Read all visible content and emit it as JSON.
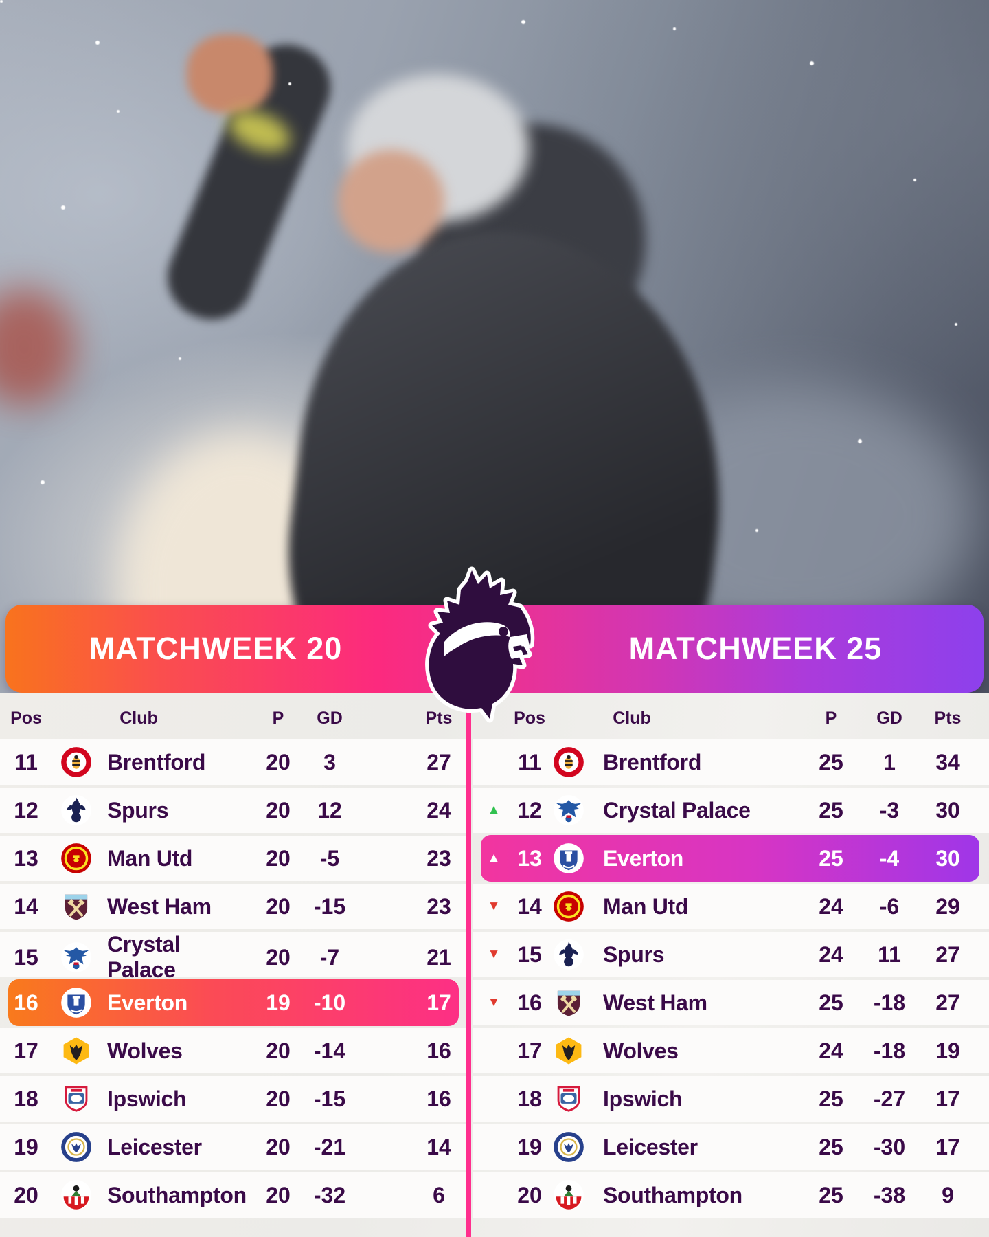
{
  "banner": {
    "left_title": "MATCHWEEK 20",
    "right_title": "MATCHWEEK 25"
  },
  "columns": {
    "pos": "Pos",
    "club": "Club",
    "p": "P",
    "gd": "GD",
    "pts": "Pts"
  },
  "icons": {
    "up": "▲",
    "down": "▼",
    "lion": "premier-league-lion-logo"
  },
  "colors": {
    "text_purple": "#3a0a48",
    "divider_pink": "#ff2f8e",
    "mw20_gradient": [
      "#f9731d",
      "#fd2f85"
    ],
    "mw25_gradient": [
      "#f2359f",
      "#9f36e8"
    ],
    "banner_gradient": [
      "#f9731d",
      "#fc2a7e",
      "#8d40ec"
    ],
    "up_green": "#31c14f",
    "down_red": "#e03a2e"
  },
  "tables": {
    "left": {
      "title": "MATCHWEEK 20",
      "rows": [
        {
          "pos": "11",
          "club": "Brentford",
          "crest": "brentford",
          "p": "20",
          "gd": "3",
          "pts": "27",
          "movement": "none",
          "highlight": false
        },
        {
          "pos": "12",
          "club": "Spurs",
          "crest": "spurs",
          "p": "20",
          "gd": "12",
          "pts": "24",
          "movement": "none",
          "highlight": false
        },
        {
          "pos": "13",
          "club": "Man Utd",
          "crest": "man-utd",
          "p": "20",
          "gd": "-5",
          "pts": "23",
          "movement": "none",
          "highlight": false
        },
        {
          "pos": "14",
          "club": "West Ham",
          "crest": "west-ham",
          "p": "20",
          "gd": "-15",
          "pts": "23",
          "movement": "none",
          "highlight": false
        },
        {
          "pos": "15",
          "club": "Crystal Palace",
          "crest": "crystal-palace",
          "p": "20",
          "gd": "-7",
          "pts": "21",
          "movement": "none",
          "highlight": false
        },
        {
          "pos": "16",
          "club": "Everton",
          "crest": "everton",
          "p": "19",
          "gd": "-10",
          "pts": "17",
          "movement": "none",
          "highlight": true
        },
        {
          "pos": "17",
          "club": "Wolves",
          "crest": "wolves",
          "p": "20",
          "gd": "-14",
          "pts": "16",
          "movement": "none",
          "highlight": false
        },
        {
          "pos": "18",
          "club": "Ipswich",
          "crest": "ipswich",
          "p": "20",
          "gd": "-15",
          "pts": "16",
          "movement": "none",
          "highlight": false
        },
        {
          "pos": "19",
          "club": "Leicester",
          "crest": "leicester",
          "p": "20",
          "gd": "-21",
          "pts": "14",
          "movement": "none",
          "highlight": false
        },
        {
          "pos": "20",
          "club": "Southampton",
          "crest": "southampton",
          "p": "20",
          "gd": "-32",
          "pts": "6",
          "movement": "none",
          "highlight": false
        }
      ]
    },
    "right": {
      "title": "MATCHWEEK 25",
      "rows": [
        {
          "pos": "11",
          "club": "Brentford",
          "crest": "brentford",
          "p": "25",
          "gd": "1",
          "pts": "34",
          "movement": "none",
          "highlight": false
        },
        {
          "pos": "12",
          "club": "Crystal Palace",
          "crest": "crystal-palace",
          "p": "25",
          "gd": "-3",
          "pts": "30",
          "movement": "up",
          "highlight": false
        },
        {
          "pos": "13",
          "club": "Everton",
          "crest": "everton",
          "p": "25",
          "gd": "-4",
          "pts": "30",
          "movement": "up",
          "highlight": true
        },
        {
          "pos": "14",
          "club": "Man Utd",
          "crest": "man-utd",
          "p": "24",
          "gd": "-6",
          "pts": "29",
          "movement": "down",
          "highlight": false
        },
        {
          "pos": "15",
          "club": "Spurs",
          "crest": "spurs",
          "p": "24",
          "gd": "11",
          "pts": "27",
          "movement": "down",
          "highlight": false
        },
        {
          "pos": "16",
          "club": "West Ham",
          "crest": "west-ham",
          "p": "25",
          "gd": "-18",
          "pts": "27",
          "movement": "down",
          "highlight": false
        },
        {
          "pos": "17",
          "club": "Wolves",
          "crest": "wolves",
          "p": "24",
          "gd": "-18",
          "pts": "19",
          "movement": "none",
          "highlight": false
        },
        {
          "pos": "18",
          "club": "Ipswich",
          "crest": "ipswich",
          "p": "25",
          "gd": "-27",
          "pts": "17",
          "movement": "none",
          "highlight": false
        },
        {
          "pos": "19",
          "club": "Leicester",
          "crest": "leicester",
          "p": "25",
          "gd": "-30",
          "pts": "17",
          "movement": "none",
          "highlight": false
        },
        {
          "pos": "20",
          "club": "Southampton",
          "crest": "southampton",
          "p": "25",
          "gd": "-38",
          "pts": "9",
          "movement": "none",
          "highlight": false
        }
      ]
    }
  }
}
